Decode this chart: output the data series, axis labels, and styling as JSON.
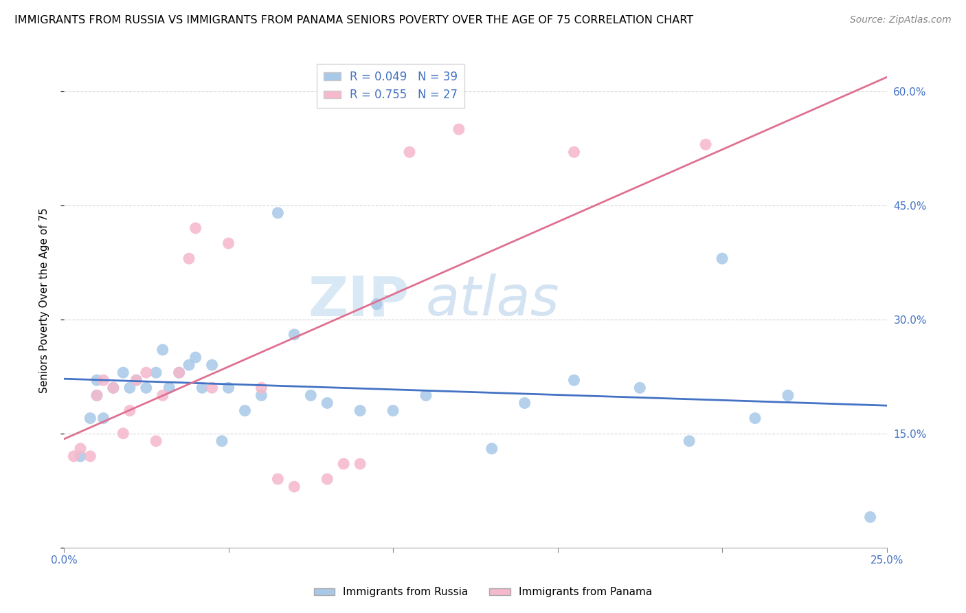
{
  "title": "IMMIGRANTS FROM RUSSIA VS IMMIGRANTS FROM PANAMA SENIORS POVERTY OVER THE AGE OF 75 CORRELATION CHART",
  "source": "Source: ZipAtlas.com",
  "ylabel": "Seniors Poverty Over the Age of 75",
  "xlim": [
    0.0,
    0.25
  ],
  "ylim": [
    0.0,
    0.65
  ],
  "xticks": [
    0.0,
    0.05,
    0.1,
    0.15,
    0.2,
    0.25
  ],
  "yticks": [
    0.0,
    0.15,
    0.3,
    0.45,
    0.6
  ],
  "R_russia": 0.049,
  "N_russia": 39,
  "R_panama": 0.755,
  "N_panama": 27,
  "color_russia": "#a8c8e8",
  "color_panama": "#f5b8cc",
  "line_color_russia": "#4472c4",
  "line_color_panama": "#e07090",
  "watermark_zip": "ZIP",
  "watermark_atlas": "atlas",
  "russia_x": [
    0.005,
    0.008,
    0.01,
    0.01,
    0.012,
    0.015,
    0.018,
    0.02,
    0.022,
    0.025,
    0.028,
    0.03,
    0.032,
    0.035,
    0.038,
    0.04,
    0.042,
    0.045,
    0.048,
    0.05,
    0.055,
    0.06,
    0.065,
    0.07,
    0.075,
    0.08,
    0.09,
    0.095,
    0.1,
    0.11,
    0.13,
    0.14,
    0.155,
    0.175,
    0.19,
    0.2,
    0.21,
    0.22,
    0.245
  ],
  "russia_y": [
    0.12,
    0.17,
    0.2,
    0.22,
    0.17,
    0.21,
    0.23,
    0.21,
    0.22,
    0.21,
    0.23,
    0.26,
    0.21,
    0.23,
    0.24,
    0.25,
    0.21,
    0.24,
    0.14,
    0.21,
    0.18,
    0.2,
    0.44,
    0.28,
    0.2,
    0.19,
    0.18,
    0.32,
    0.18,
    0.2,
    0.13,
    0.19,
    0.22,
    0.21,
    0.14,
    0.38,
    0.17,
    0.2,
    0.04
  ],
  "panama_x": [
    0.003,
    0.005,
    0.008,
    0.01,
    0.012,
    0.015,
    0.018,
    0.02,
    0.022,
    0.025,
    0.028,
    0.03,
    0.035,
    0.038,
    0.04,
    0.045,
    0.05,
    0.06,
    0.065,
    0.07,
    0.08,
    0.085,
    0.09,
    0.105,
    0.12,
    0.155,
    0.195
  ],
  "panama_y": [
    0.12,
    0.13,
    0.12,
    0.2,
    0.22,
    0.21,
    0.15,
    0.18,
    0.22,
    0.23,
    0.14,
    0.2,
    0.23,
    0.38,
    0.42,
    0.21,
    0.4,
    0.21,
    0.09,
    0.08,
    0.09,
    0.11,
    0.11,
    0.52,
    0.55,
    0.52,
    0.53
  ]
}
